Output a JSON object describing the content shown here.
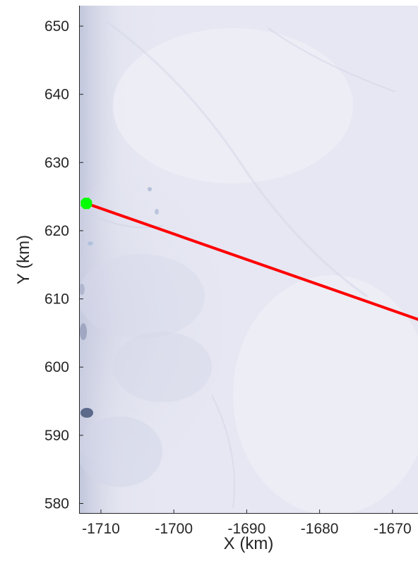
{
  "chart_data": {
    "type": "map",
    "xlabel": "X (km)",
    "ylabel": "Y (km)",
    "xlim": [
      -1713,
      -1666.5
    ],
    "ylim": [
      578.5,
      653
    ],
    "xticks": [
      -1710,
      -1700,
      -1690,
      -1680,
      -1670
    ],
    "yticks": [
      580,
      590,
      600,
      610,
      620,
      630,
      640,
      650
    ],
    "basemap": "satellite imagery of snow/ice surface",
    "profile_line": {
      "color": "#ff0000",
      "points": [
        [
          -1712,
          624
        ],
        [
          -1666.5,
          607
        ]
      ]
    },
    "start_marker": {
      "color": "#00ff00",
      "x": -1712,
      "y": 624
    },
    "grid": false
  }
}
